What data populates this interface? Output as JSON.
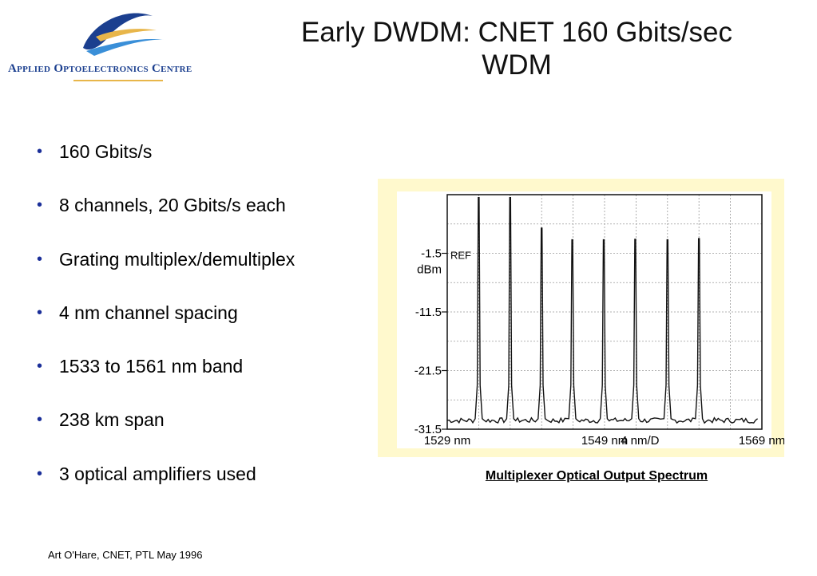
{
  "logo": {
    "org_name": "Applied Optoelectronics Centre",
    "colors": {
      "swoosh_dark": "#1b3f8f",
      "swoosh_light": "#3a8fd8",
      "accent": "#e8b64a"
    }
  },
  "slide": {
    "title_line1": "Early DWDM: CNET 160 Gbits/sec",
    "title_line2": "WDM",
    "bullet_glyph": "•",
    "bullets": [
      "160 Gbits/s",
      "8 channels, 20 Gbits/s each",
      "Grating multiplex/demultiplex",
      "4 nm channel spacing",
      "1533 to 1561 nm band",
      "238 km span",
      "3 optical amplifiers used"
    ],
    "footer": "Art O'Hare, CNET, PTL May 1996"
  },
  "chart_data": {
    "type": "line",
    "caption": "Multiplexer Optical Output Spectrum",
    "y_unit_label": "dBm",
    "ref_label": "REF",
    "x_unit": "nm",
    "xlim": [
      1529,
      1569
    ],
    "ylim": [
      -31.5,
      8.5
    ],
    "x_ticks": [
      1529,
      1533,
      1537,
      1541,
      1545,
      1549,
      1553,
      1557,
      1561,
      1565,
      1569
    ],
    "x_tick_labels": [
      {
        "value": 1529,
        "label": "1529 nm"
      },
      {
        "value": 1549,
        "label": "1549 nm"
      },
      {
        "value": 1569,
        "label": "1569 nm"
      }
    ],
    "x_scale_label": "4 nm/D",
    "y_tick_labels": [
      {
        "value": -1.5,
        "label": "-1.5"
      },
      {
        "value": -11.5,
        "label": "-11.5"
      },
      {
        "value": -21.5,
        "label": "-21.5"
      },
      {
        "value": -31.5,
        "label": "-31.5"
      }
    ],
    "grid": true,
    "noise_floor_dbm": -30,
    "series": [
      {
        "points": [
          {
            "x": 1533.0,
            "y": 8.0
          },
          {
            "x": 1537.0,
            "y": 8.0
          },
          {
            "x": 1541.0,
            "y": 2.8
          },
          {
            "x": 1544.9,
            "y": 0.8
          },
          {
            "x": 1548.9,
            "y": 0.8
          },
          {
            "x": 1552.9,
            "y": 0.9
          },
          {
            "x": 1557.0,
            "y": 0.8
          },
          {
            "x": 1561.0,
            "y": 1.0
          }
        ]
      }
    ],
    "colors": {
      "panel": "#fff9cd",
      "plot_bg": "#ffffff",
      "grid": "#999999",
      "trace": "#111111"
    }
  }
}
